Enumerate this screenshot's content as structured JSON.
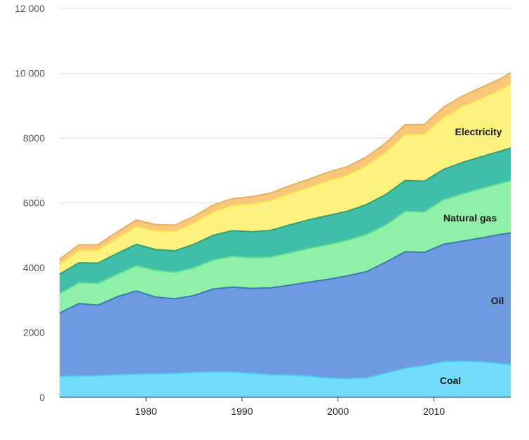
{
  "chart_data": {
    "type": "area",
    "stacked": true,
    "xlim": [
      1971,
      2018
    ],
    "ylim": [
      0,
      12000
    ],
    "y_ticks": [
      0,
      2000,
      4000,
      6000,
      8000,
      10000,
      12000
    ],
    "y_tick_labels": [
      "0",
      "2000",
      "4000",
      "6000",
      "8000",
      "10 000",
      "12 000"
    ],
    "x_ticks": [
      1980,
      1990,
      2000,
      2010
    ],
    "x_tick_labels": [
      "1980",
      "1990",
      "2000",
      "2010"
    ],
    "grid": true,
    "x": [
      1971,
      1973,
      1975,
      1977,
      1979,
      1981,
      1983,
      1985,
      1987,
      1989,
      1991,
      1993,
      1995,
      1997,
      1999,
      2001,
      2003,
      2005,
      2007,
      2009,
      2011,
      2013,
      2015,
      2017,
      2018
    ],
    "series": [
      {
        "name": "Coal",
        "color": "#72dcfb",
        "line": "#45c8f0",
        "values": [
          650,
          660,
          670,
          700,
          720,
          730,
          740,
          770,
          790,
          780,
          740,
          700,
          690,
          650,
          600,
          580,
          600,
          750,
          900,
          980,
          1100,
          1120,
          1100,
          1040,
          1010
        ]
      },
      {
        "name": "Oil",
        "color": "#6e9ae0",
        "line": "#3f73cf",
        "values": [
          1950,
          2230,
          2170,
          2400,
          2560,
          2360,
          2300,
          2370,
          2550,
          2620,
          2620,
          2680,
          2770,
          2900,
          3040,
          3170,
          3280,
          3420,
          3590,
          3490,
          3620,
          3700,
          3820,
          3990,
          4060
        ]
      },
      {
        "name": "Natural gas",
        "color": "#8ff0a8",
        "line": "#5fd98a",
        "values": [
          600,
          650,
          680,
          700,
          780,
          830,
          820,
          860,
          900,
          950,
          950,
          950,
          1000,
          1050,
          1070,
          1100,
          1150,
          1150,
          1250,
          1250,
          1380,
          1460,
          1530,
          1580,
          1620
        ]
      },
      {
        "name": "",
        "color": "#3fbfa8",
        "line": "#1fa58a",
        "values": [
          600,
          610,
          620,
          640,
          660,
          640,
          660,
          720,
          760,
          790,
          800,
          820,
          860,
          880,
          900,
          890,
          920,
          940,
          950,
          950,
          930,
          970,
          980,
          990,
          1000
        ]
      },
      {
        "name": "Electricity",
        "color": "#fdf27e",
        "line": "#f8e04a",
        "values": [
          300,
          380,
          400,
          480,
          560,
          580,
          600,
          660,
          720,
          780,
          860,
          920,
          970,
          1000,
          1080,
          1110,
          1200,
          1300,
          1420,
          1450,
          1600,
          1720,
          1800,
          1900,
          1980
        ]
      },
      {
        "name": "",
        "color": "#f9c77a",
        "line": "#f4ae4e",
        "values": [
          160,
          170,
          170,
          180,
          190,
          190,
          190,
          200,
          210,
          210,
          220,
          230,
          240,
          250,
          260,
          270,
          270,
          290,
          300,
          300,
          320,
          330,
          340,
          340,
          350
        ]
      }
    ]
  }
}
